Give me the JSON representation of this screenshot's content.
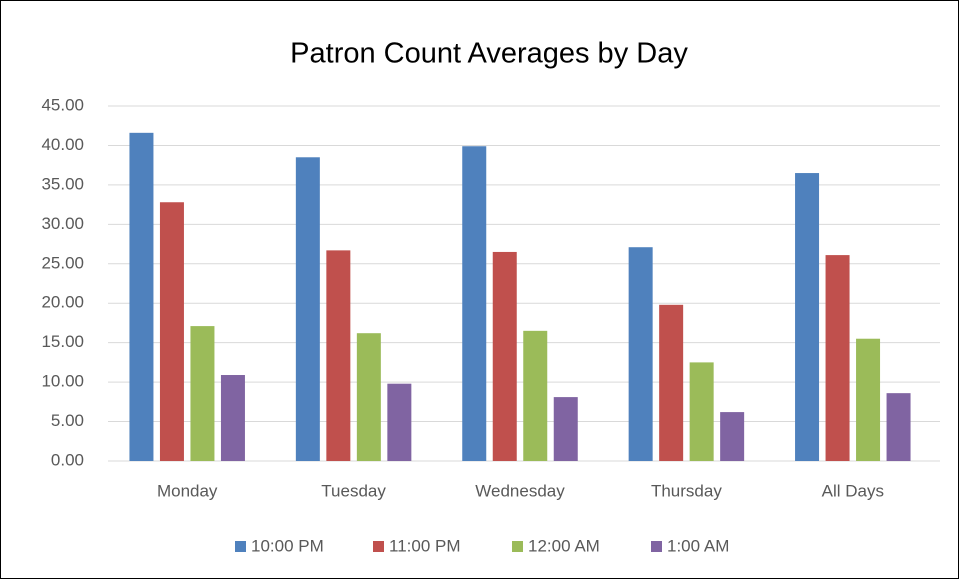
{
  "chart_data": {
    "type": "bar",
    "title": "Patron Count Averages by Day",
    "categories": [
      "Monday",
      "Tuesday",
      "Wednesday",
      "Thursday",
      "All Days"
    ],
    "series": [
      {
        "name": "10:00 PM",
        "color": "#4f81bd",
        "values": [
          41.6,
          38.5,
          39.9,
          27.1,
          36.5
        ]
      },
      {
        "name": "11:00 PM",
        "color": "#c0504d",
        "values": [
          32.8,
          26.7,
          26.5,
          19.8,
          26.1
        ]
      },
      {
        "name": "12:00 AM",
        "color": "#9bbb59",
        "values": [
          17.1,
          16.2,
          16.5,
          12.5,
          15.5
        ]
      },
      {
        "name": "1:00 AM",
        "color": "#8064a2",
        "values": [
          10.9,
          9.8,
          8.1,
          6.2,
          8.6
        ]
      }
    ],
    "ylim": [
      0,
      45
    ],
    "yticks": [
      {
        "value": 0,
        "label": "0.00"
      },
      {
        "value": 5,
        "label": "5.00"
      },
      {
        "value": 10,
        "label": "10.00"
      },
      {
        "value": 15,
        "label": "15.00"
      },
      {
        "value": 20,
        "label": "20.00"
      },
      {
        "value": 25,
        "label": "25.00"
      },
      {
        "value": 30,
        "label": "30.00"
      },
      {
        "value": 35,
        "label": "35.00"
      },
      {
        "value": 40,
        "label": "40.00"
      },
      {
        "value": 45,
        "label": "45.00"
      }
    ],
    "grid": true,
    "legend": "bottom"
  }
}
